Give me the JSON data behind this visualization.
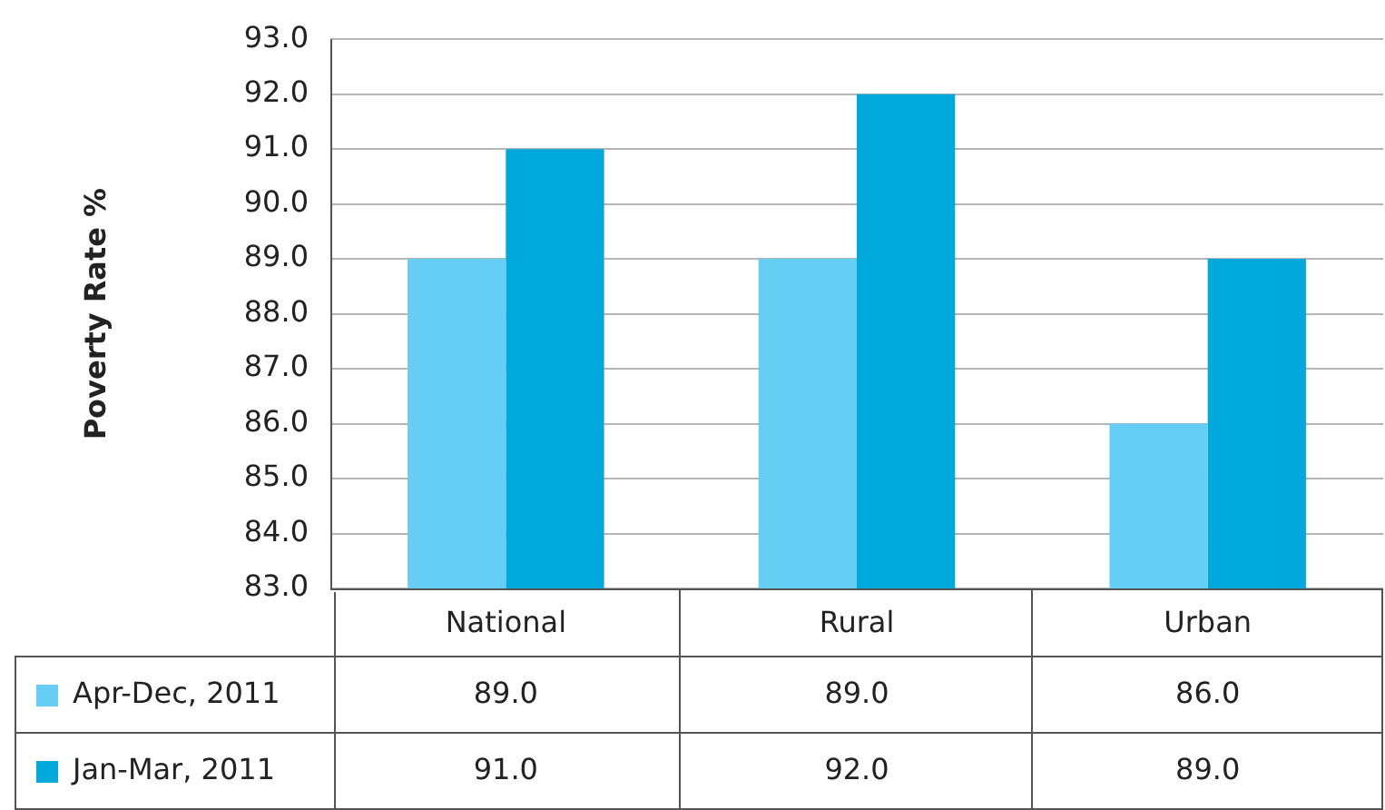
{
  "chart_data": {
    "type": "bar",
    "ylabel": "Poverty Rate %",
    "categories": [
      "National",
      "Rural",
      "Urban"
    ],
    "series": [
      {
        "name": "Apr-Dec, 2011",
        "color": "#66cdf5",
        "values": [
          89.0,
          89.0,
          86.0
        ],
        "value_labels": [
          "89.0",
          "89.0",
          "86.0"
        ]
      },
      {
        "name": "Jan-Mar, 2011",
        "color": "#00a9dc",
        "values": [
          91.0,
          92.0,
          89.0
        ],
        "value_labels": [
          "91.0",
          "92.0",
          "89.0"
        ]
      }
    ],
    "ylim": [
      83,
      93
    ],
    "yticks": [
      {
        "value": 83,
        "label": "83.0"
      },
      {
        "value": 84,
        "label": "84.0"
      },
      {
        "value": 85,
        "label": "85.0"
      },
      {
        "value": 86,
        "label": "86.0"
      },
      {
        "value": 87,
        "label": "87.0"
      },
      {
        "value": 88,
        "label": "88.0"
      },
      {
        "value": 89,
        "label": "89.0"
      },
      {
        "value": 90,
        "label": "90.0"
      },
      {
        "value": 91,
        "label": "91.0"
      },
      {
        "value": 92,
        "label": "92.0"
      },
      {
        "value": 93,
        "label": "93.0"
      }
    ],
    "grid": "y",
    "legend": "bottom"
  }
}
